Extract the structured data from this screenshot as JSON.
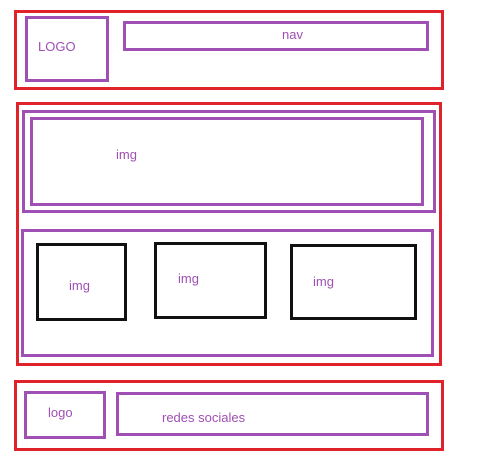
{
  "colors": {
    "section_border": "#e0232a",
    "element_border": "#a04fb5",
    "image_border": "#111111",
    "label_text": "#a04fb5"
  },
  "header": {
    "logo_label": "LOGO",
    "nav_label": "nav"
  },
  "main": {
    "hero_label": "img",
    "gallery": [
      {
        "label": "img"
      },
      {
        "label": "img"
      },
      {
        "label": "img"
      }
    ]
  },
  "footer": {
    "logo_label": "logo",
    "social_label": "redes sociales"
  }
}
